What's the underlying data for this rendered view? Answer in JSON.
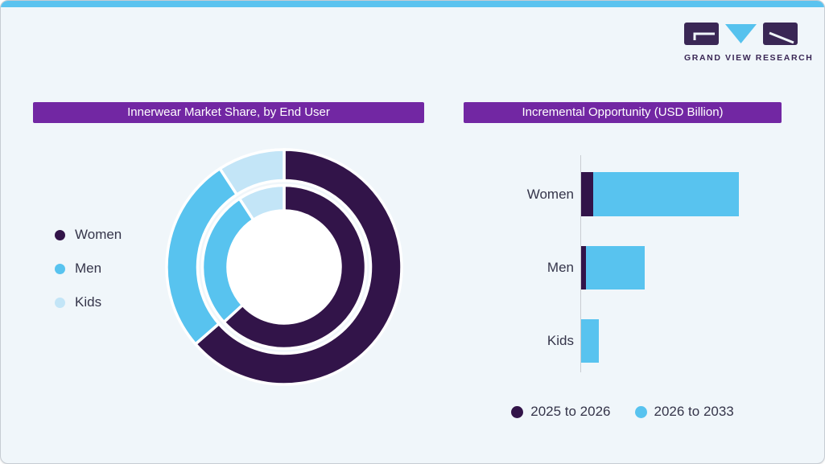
{
  "page": {
    "background": "#F0F6FA",
    "top_strip_color": "#5BC3EF",
    "border_color": "#C6CCD3"
  },
  "logo": {
    "text": "GRAND VIEW RESEARCH",
    "dark_color": "#3A2755",
    "accent_color": "#56C2EE"
  },
  "left_panel": {
    "title": "Innerwear Market Share, by End User",
    "title_bg": "#7227A3",
    "title_color": "#FFFFFF",
    "legend": [
      {
        "label": "Women",
        "color": "#321449"
      },
      {
        "label": "Men",
        "color": "#58C3EF"
      },
      {
        "label": "Kids",
        "color": "#C3E5F7"
      }
    ]
  },
  "right_panel": {
    "title": "Incremental Opportunity (USD Billion)",
    "title_bg": "#7227A3",
    "title_color": "#FFFFFF",
    "legend": [
      {
        "label": "2025 to 2026",
        "color": "#321449"
      },
      {
        "label": "2026 to 2033",
        "color": "#58C3EF"
      }
    ]
  },
  "chart_data": [
    {
      "type": "pie",
      "subtype": "double-ring-donut",
      "title": "Innerwear Market Share, by End User",
      "categories": [
        "Women",
        "Men",
        "Kids"
      ],
      "colors": [
        "#321449",
        "#58C3EF",
        "#C3E5F7"
      ],
      "unit": "percent-share (no labels shown)",
      "rings": [
        {
          "name": "outer",
          "values": [
            63.6,
            27.2,
            9.2
          ]
        },
        {
          "name": "inner",
          "values": [
            63.2,
            27.6,
            9.2
          ]
        }
      ],
      "legend_position": "left",
      "segment_gap_color": "#FFFFFF"
    },
    {
      "type": "bar",
      "orientation": "horizontal",
      "stacked": true,
      "title": "Incremental Opportunity (USD Billion)",
      "categories": [
        "Women",
        "Men",
        "Kids"
      ],
      "series": [
        {
          "name": "2025 to 2026",
          "color": "#321449",
          "values": [
            1.5,
            0.6,
            0
          ]
        },
        {
          "name": "2026 to 2033",
          "color": "#58C3EF",
          "values": [
            18.1,
            7.3,
            2.2
          ]
        }
      ],
      "xlim": [
        0,
        20
      ],
      "axis_tick_labels_visible": false,
      "grid": false,
      "legend_position": "bottom"
    }
  ]
}
